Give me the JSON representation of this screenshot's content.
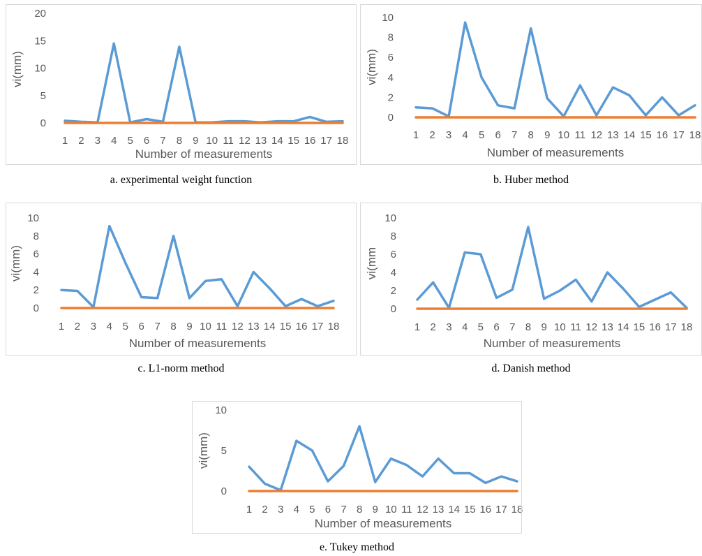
{
  "chart_data": [
    {
      "id": "a",
      "type": "line",
      "caption": "a. experimental weight function",
      "xlabel": "Number of measurements",
      "ylabel": "vi(mm)",
      "categories": [
        "1",
        "2",
        "3",
        "4",
        "5",
        "6",
        "7",
        "8",
        "9",
        "10",
        "11",
        "12",
        "13",
        "14",
        "15",
        "16",
        "17",
        "18"
      ],
      "ylim": [
        0,
        20
      ],
      "yticks": [
        0,
        5,
        10,
        15,
        20
      ],
      "grid": false,
      "colors": {
        "series": "#5b9bd5",
        "baseline": "#ed7d31"
      },
      "series": [
        {
          "values": [
            0.4,
            0.2,
            0.1,
            14.5,
            0.1,
            0.7,
            0.2,
            13.9,
            0.1,
            0.1,
            0.3,
            0.3,
            0.1,
            0.3,
            0.3,
            1.1,
            0.2,
            0.3
          ]
        },
        {
          "values": [
            0,
            0,
            0,
            0,
            0,
            0,
            0,
            0,
            0,
            0,
            0,
            0,
            0,
            0,
            0,
            0,
            0,
            0
          ]
        }
      ]
    },
    {
      "id": "b",
      "type": "line",
      "caption": "b. Huber method",
      "xlabel": "Number of measurements",
      "ylabel": "vi(mm)",
      "categories": [
        "1",
        "2",
        "3",
        "4",
        "5",
        "6",
        "7",
        "8",
        "9",
        "10",
        "11",
        "12",
        "13",
        "14",
        "15",
        "16",
        "17",
        "18"
      ],
      "ylim": [
        0,
        10
      ],
      "yticks": [
        0,
        2,
        4,
        6,
        8,
        10
      ],
      "grid": false,
      "colors": {
        "series": "#5b9bd5",
        "baseline": "#ed7d31"
      },
      "series": [
        {
          "values": [
            1.0,
            0.9,
            0.1,
            9.5,
            4.0,
            1.2,
            0.9,
            8.9,
            1.9,
            0.1,
            3.2,
            0.2,
            3.0,
            2.2,
            0.2,
            2.0,
            0.2,
            1.2
          ]
        },
        {
          "values": [
            0,
            0,
            0,
            0,
            0,
            0,
            0,
            0,
            0,
            0,
            0,
            0,
            0,
            0,
            0,
            0,
            0,
            0
          ]
        }
      ]
    },
    {
      "id": "c",
      "type": "line",
      "caption": "c. L1-norm method",
      "xlabel": "Number of measurements",
      "ylabel": "vi(mm)",
      "categories": [
        "1",
        "2",
        "3",
        "4",
        "5",
        "6",
        "7",
        "8",
        "9",
        "10",
        "11",
        "12",
        "13",
        "14",
        "15",
        "16",
        "17",
        "18"
      ],
      "ylim": [
        0,
        10
      ],
      "yticks": [
        0,
        2,
        4,
        6,
        8,
        10
      ],
      "grid": false,
      "colors": {
        "series": "#5b9bd5",
        "baseline": "#ed7d31"
      },
      "series": [
        {
          "values": [
            2.0,
            1.9,
            0.1,
            9.1,
            5.0,
            1.2,
            1.1,
            8.0,
            1.1,
            3.0,
            3.2,
            0.2,
            4.0,
            2.2,
            0.2,
            1.0,
            0.2,
            0.8
          ]
        },
        {
          "values": [
            0,
            0,
            0,
            0,
            0,
            0,
            0,
            0,
            0,
            0,
            0,
            0,
            0,
            0,
            0,
            0,
            0,
            0
          ]
        }
      ]
    },
    {
      "id": "d",
      "type": "line",
      "caption": "d. Danish method",
      "xlabel": "Number of measurements",
      "ylabel": "vi(mm",
      "categories": [
        "1",
        "2",
        "3",
        "4",
        "5",
        "6",
        "7",
        "8",
        "9",
        "10",
        "11",
        "12",
        "13",
        "14",
        "15",
        "16",
        "17",
        "18"
      ],
      "ylim": [
        0,
        10
      ],
      "yticks": [
        0,
        2,
        4,
        6,
        8,
        10
      ],
      "grid": false,
      "colors": {
        "series": "#5b9bd5",
        "baseline": "#ed7d31"
      },
      "series": [
        {
          "values": [
            1.0,
            2.9,
            0.1,
            6.2,
            6.0,
            1.2,
            2.1,
            9.0,
            1.1,
            2.0,
            3.2,
            0.8,
            4.0,
            2.2,
            0.2,
            1.0,
            1.8,
            0.1
          ]
        },
        {
          "values": [
            0,
            0,
            0,
            0,
            0,
            0,
            0,
            0,
            0,
            0,
            0,
            0,
            0,
            0,
            0,
            0,
            0,
            0
          ]
        }
      ]
    },
    {
      "id": "e",
      "type": "line",
      "caption": "e. Tukey method",
      "xlabel": "Number of measurements",
      "ylabel": "vi(mm)",
      "categories": [
        "1",
        "2",
        "3",
        "4",
        "5",
        "6",
        "7",
        "8",
        "9",
        "10",
        "11",
        "12",
        "13",
        "14",
        "15",
        "16",
        "17",
        "18"
      ],
      "ylim": [
        0,
        10
      ],
      "yticks": [
        0,
        5,
        10
      ],
      "grid": false,
      "colors": {
        "series": "#5b9bd5",
        "baseline": "#ed7d31"
      },
      "series": [
        {
          "values": [
            3.0,
            0.9,
            0.1,
            6.2,
            5.0,
            1.2,
            3.1,
            8.0,
            1.1,
            4.0,
            3.2,
            1.8,
            4.0,
            2.2,
            2.2,
            1.0,
            1.8,
            1.2
          ]
        },
        {
          "values": [
            0,
            0,
            0,
            0,
            0,
            0,
            0,
            0,
            0,
            0,
            0,
            0,
            0,
            0,
            0,
            0,
            0,
            0
          ]
        }
      ]
    }
  ]
}
